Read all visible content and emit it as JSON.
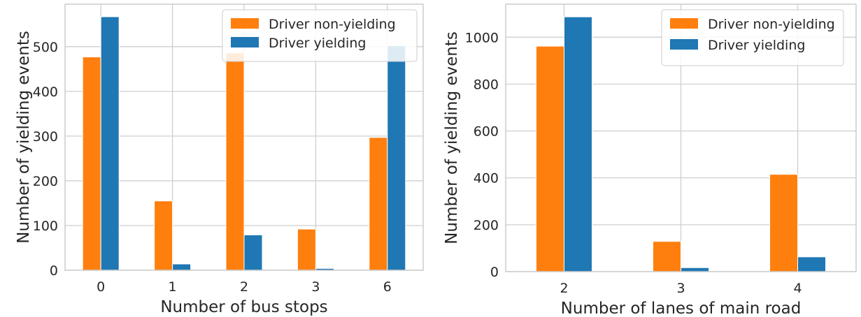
{
  "colors": {
    "non_yielding": "#ff7f0e",
    "yielding": "#1f77b4",
    "grid": "#cfcfcf",
    "axes_edge": "#cccccc"
  },
  "chart_data": [
    {
      "type": "bar",
      "categories": [
        "0",
        "1",
        "2",
        "3",
        "6"
      ],
      "series": [
        {
          "name": "Driver non-yielding",
          "values": [
            477,
            155,
            486,
            92,
            297
          ]
        },
        {
          "name": "Driver yielding",
          "values": [
            567,
            14,
            79,
            4,
            502
          ]
        }
      ],
      "xlabel": "Number of bus stops",
      "ylabel": "Number of yielding events",
      "ylim": [
        0,
        595
      ],
      "yticks": [
        0,
        100,
        200,
        300,
        400,
        500
      ],
      "grid": true,
      "legend": "top-right"
    },
    {
      "type": "bar",
      "categories": [
        "2",
        "3",
        "4"
      ],
      "series": [
        {
          "name": "Driver non-yielding",
          "values": [
            962,
            129,
            415
          ]
        },
        {
          "name": "Driver yielding",
          "values": [
            1087,
            17,
            63
          ]
        }
      ],
      "xlabel": "Number of lanes of main road",
      "ylabel": "Number of yielding events",
      "ylim": [
        0,
        1141
      ],
      "yticks": [
        0,
        200,
        400,
        600,
        800,
        1000
      ],
      "grid": true,
      "legend": "top-right"
    }
  ]
}
